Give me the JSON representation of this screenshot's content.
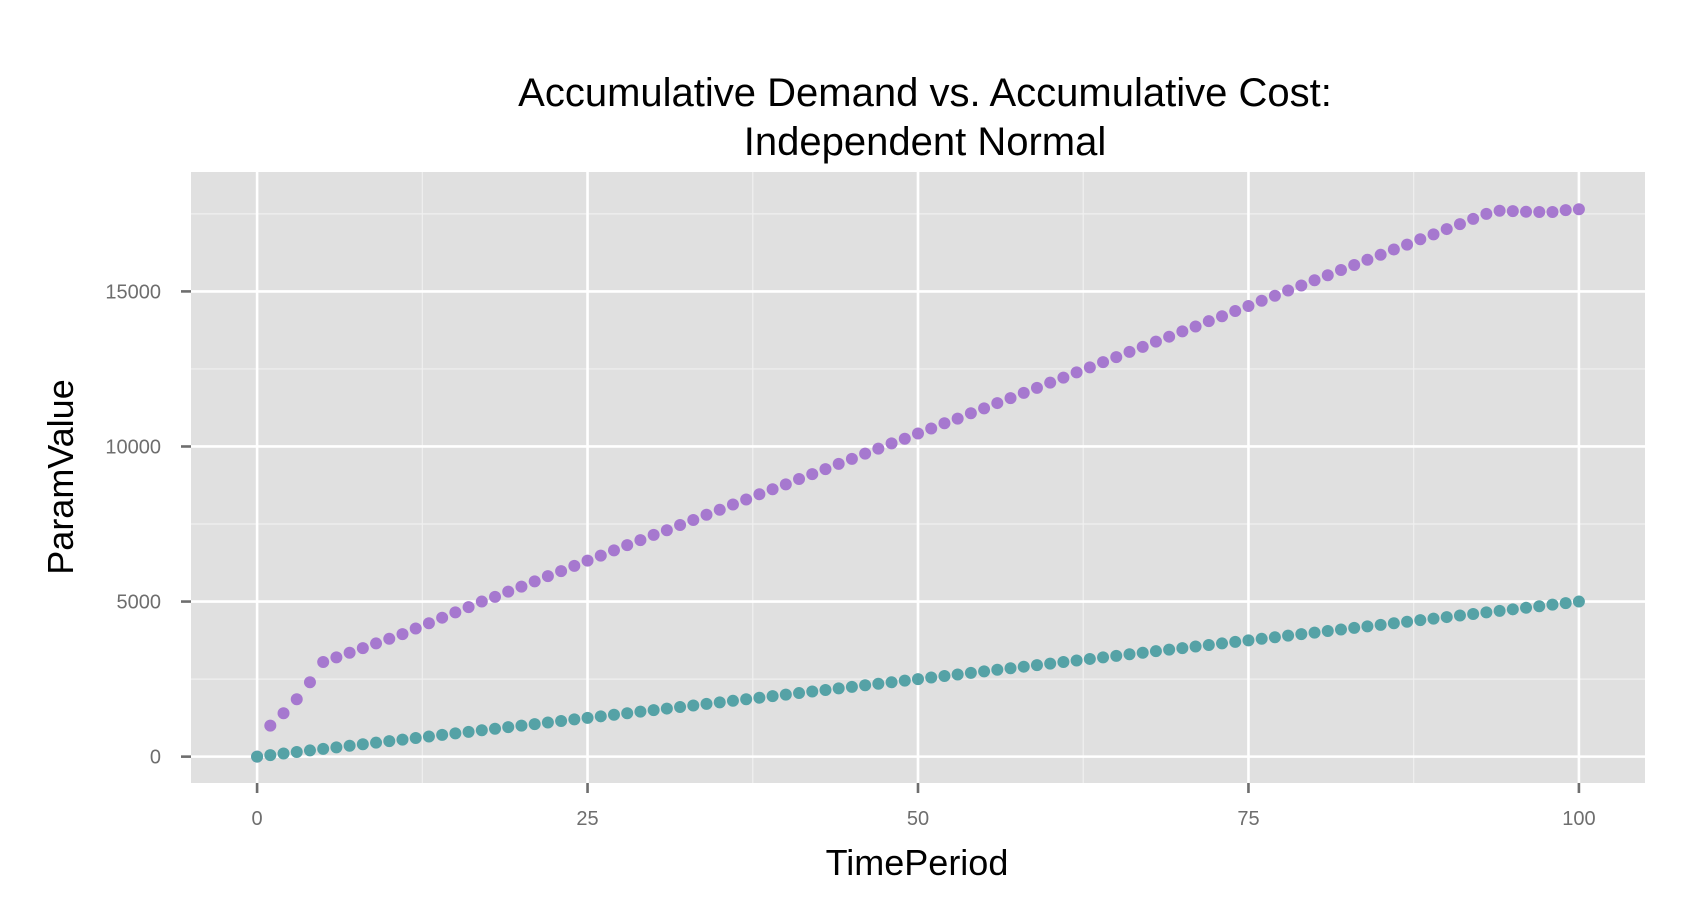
{
  "chart_data": {
    "type": "scatter",
    "title_line1": "Accumulative Demand vs. Accumulative Cost:",
    "title_line2": "Independent Normal",
    "xlabel": "TimePeriod",
    "ylabel": "ParamValue",
    "xlim": [
      -5,
      105
    ],
    "ylim": [
      -850,
      18850
    ],
    "x_ticks": [
      0,
      25,
      50,
      75,
      100
    ],
    "y_ticks": [
      0,
      5000,
      10000,
      15000
    ],
    "grid": true,
    "legend": "none",
    "colors": {
      "panel": "#e0e0e0",
      "grid": "#ffffff",
      "tick": "#6e6e6e"
    },
    "series": [
      {
        "color": "#a678cf",
        "x": [
          0,
          1,
          2,
          3,
          4,
          5,
          6,
          7,
          8,
          9,
          10,
          11,
          12,
          13,
          14,
          15,
          16,
          17,
          18,
          19,
          20,
          21,
          22,
          23,
          24,
          25,
          26,
          27,
          28,
          29,
          30,
          31,
          32,
          33,
          34,
          35,
          36,
          37,
          38,
          39,
          40,
          41,
          42,
          43,
          44,
          45,
          46,
          47,
          48,
          49,
          50,
          51,
          52,
          53,
          54,
          55,
          56,
          57,
          58,
          59,
          60,
          61,
          62,
          63,
          64,
          65,
          66,
          67,
          68,
          69,
          70,
          71,
          72,
          73,
          74,
          75,
          76,
          77,
          78,
          79,
          80,
          81,
          82,
          83,
          84,
          85,
          86,
          87,
          88,
          89,
          90,
          91,
          92,
          93,
          94,
          95,
          96,
          97,
          98,
          99,
          100
        ],
        "y": [
          0,
          1000,
          1400,
          1850,
          2400,
          3050,
          3200,
          3350,
          3500,
          3650,
          3800,
          3950,
          4130,
          4300,
          4480,
          4650,
          4820,
          5000,
          5150,
          5320,
          5480,
          5650,
          5820,
          5980,
          6150,
          6320,
          6480,
          6650,
          6820,
          6980,
          7150,
          7300,
          7470,
          7630,
          7800,
          7960,
          8130,
          8290,
          8460,
          8620,
          8780,
          8950,
          9110,
          9270,
          9440,
          9600,
          9770,
          9930,
          10100,
          10250,
          10420,
          10580,
          10750,
          10900,
          11070,
          11230,
          11400,
          11560,
          11730,
          11890,
          12060,
          12220,
          12390,
          12550,
          12720,
          12880,
          13050,
          13210,
          13380,
          13540,
          13710,
          13870,
          14040,
          14200,
          14370,
          14530,
          14700,
          14860,
          15030,
          15190,
          15360,
          15520,
          15690,
          15850,
          16020,
          16180,
          16350,
          16510,
          16680,
          16840,
          17010,
          17170,
          17340,
          17500,
          17600,
          17590,
          17570,
          17560,
          17560,
          17620,
          17650
        ]
      },
      {
        "color": "#55a2a6",
        "x": [
          0,
          1,
          2,
          3,
          4,
          5,
          6,
          7,
          8,
          9,
          10,
          11,
          12,
          13,
          14,
          15,
          16,
          17,
          18,
          19,
          20,
          21,
          22,
          23,
          24,
          25,
          26,
          27,
          28,
          29,
          30,
          31,
          32,
          33,
          34,
          35,
          36,
          37,
          38,
          39,
          40,
          41,
          42,
          43,
          44,
          45,
          46,
          47,
          48,
          49,
          50,
          51,
          52,
          53,
          54,
          55,
          56,
          57,
          58,
          59,
          60,
          61,
          62,
          63,
          64,
          65,
          66,
          67,
          68,
          69,
          70,
          71,
          72,
          73,
          74,
          75,
          76,
          77,
          78,
          79,
          80,
          81,
          82,
          83,
          84,
          85,
          86,
          87,
          88,
          89,
          90,
          91,
          92,
          93,
          94,
          95,
          96,
          97,
          98,
          99,
          100
        ],
        "y": [
          0,
          50,
          100,
          150,
          200,
          250,
          300,
          350,
          400,
          450,
          500,
          550,
          600,
          650,
          700,
          750,
          800,
          850,
          900,
          950,
          1000,
          1050,
          1100,
          1150,
          1200,
          1250,
          1300,
          1350,
          1400,
          1450,
          1500,
          1550,
          1600,
          1650,
          1700,
          1750,
          1800,
          1850,
          1900,
          1950,
          2000,
          2050,
          2100,
          2150,
          2200,
          2250,
          2300,
          2350,
          2400,
          2450,
          2500,
          2550,
          2600,
          2650,
          2700,
          2750,
          2800,
          2850,
          2900,
          2950,
          3000,
          3050,
          3100,
          3150,
          3200,
          3250,
          3300,
          3350,
          3400,
          3450,
          3500,
          3550,
          3600,
          3650,
          3700,
          3750,
          3800,
          3850,
          3900,
          3950,
          4000,
          4050,
          4100,
          4150,
          4200,
          4250,
          4300,
          4350,
          4400,
          4450,
          4500,
          4550,
          4600,
          4650,
          4700,
          4750,
          4800,
          4850,
          4900,
          4950,
          5000
        ]
      }
    ]
  }
}
